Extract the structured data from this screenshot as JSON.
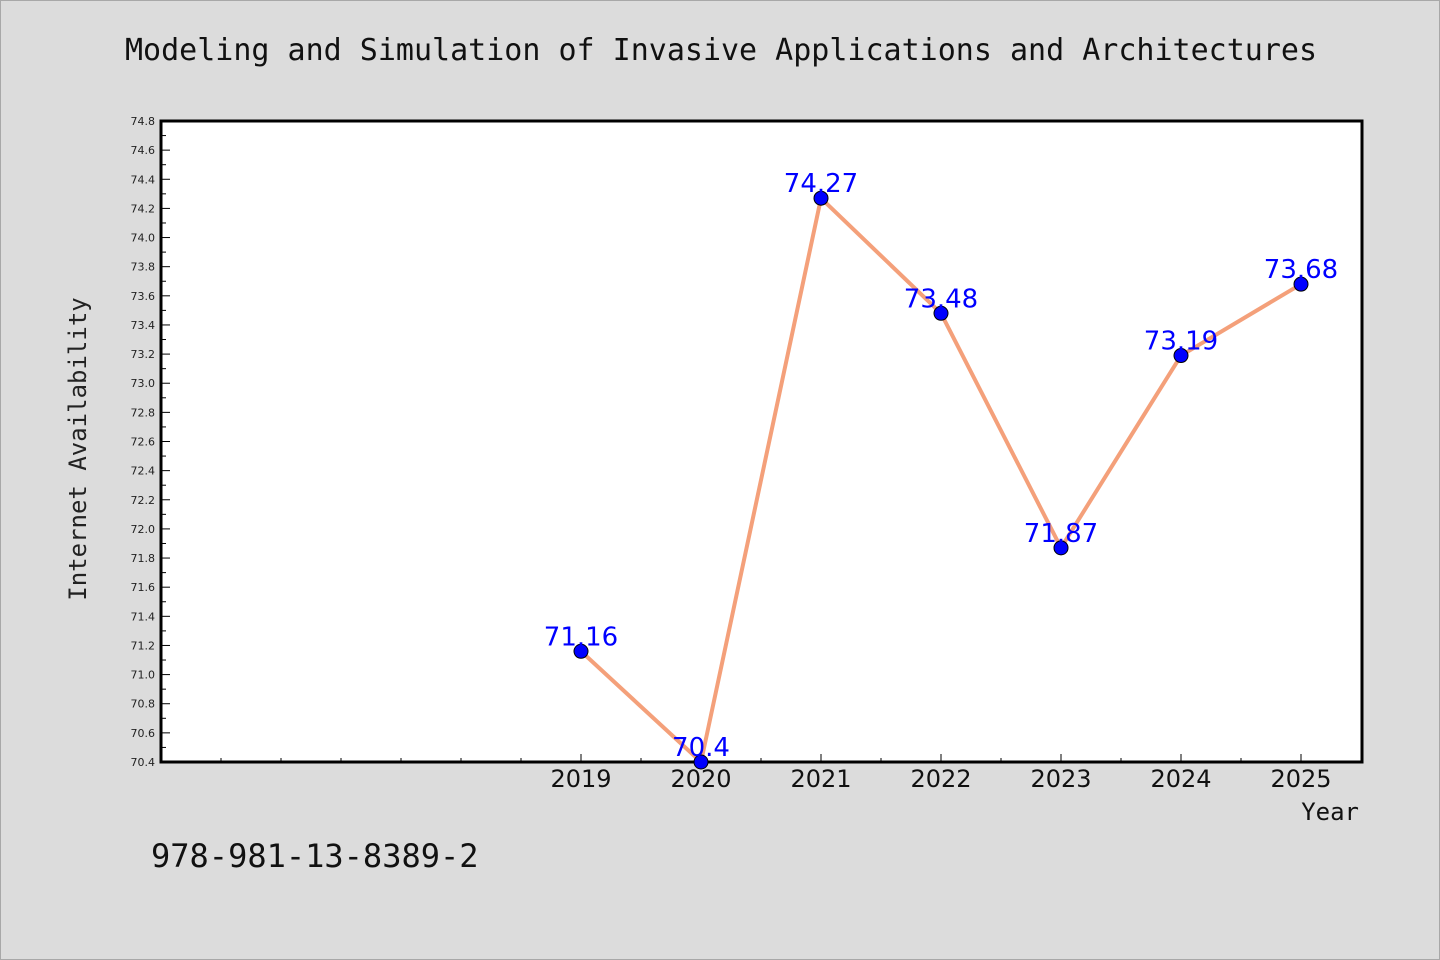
{
  "footnote": "978-981-13-8389-2",
  "chart_data": {
    "type": "line",
    "title": "Modeling and Simulation of Invasive Applications and Architectures",
    "xlabel": "Year",
    "ylabel": "Internet Availability",
    "categories": [
      "2019",
      "2020",
      "2021",
      "2022",
      "2023",
      "2024",
      "2025"
    ],
    "series": [
      {
        "values": [
          71.16,
          70.4,
          74.27,
          73.48,
          71.87,
          73.19,
          73.68
        ],
        "labels": [
          "71.16",
          "70.4",
          "74.27",
          "73.48",
          "71.87",
          "73.19",
          "73.68"
        ],
        "line_color": "#f4a07a",
        "marker_color": "#0000ff"
      }
    ],
    "ylim": [
      70.4,
      74.8
    ],
    "yticks": [
      "70.4",
      "70.6",
      "70.8",
      "71.0",
      "71.2",
      "71.4",
      "71.6",
      "71.8",
      "72.0",
      "72.2",
      "72.4",
      "72.6",
      "72.8",
      "73.0",
      "73.2",
      "73.4",
      "73.6",
      "73.8",
      "74.0",
      "74.2",
      "74.4",
      "74.6",
      "74.8"
    ],
    "grid": false,
    "legend": "none",
    "colors": {
      "background": "#dcdcdc",
      "plot_background": "#ffffff",
      "axis": "#000000"
    }
  }
}
